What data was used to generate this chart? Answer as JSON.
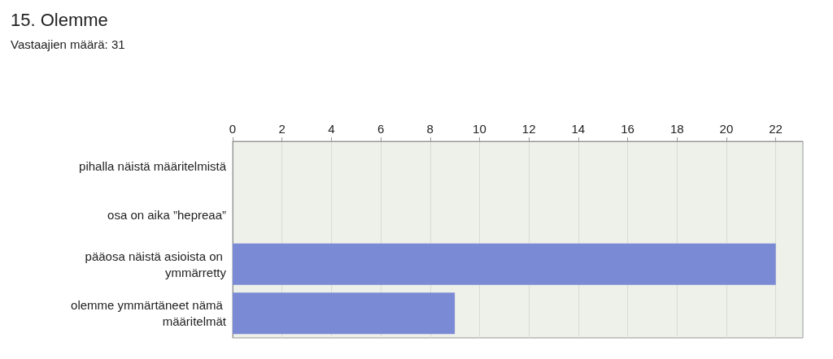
{
  "chart_data": {
    "type": "bar",
    "title": "15. Olemme",
    "subtitle": "Vastaajien määrä: 31",
    "orientation": "horizontal",
    "categories": [
      "pihalla näistä määritelmistä",
      "osa on aika ”hepreaa”",
      "pääosa näistä asioista on ymmärretty",
      "olemme ymmärtäneet nämä määritelmät"
    ],
    "values": [
      0,
      0,
      22,
      9
    ],
    "color": "#7b8ad4",
    "xlim": [
      0,
      23.1
    ],
    "xticks": [
      0,
      2,
      4,
      6,
      8,
      10,
      12,
      14,
      16,
      18,
      20,
      22
    ],
    "grid": "x"
  }
}
